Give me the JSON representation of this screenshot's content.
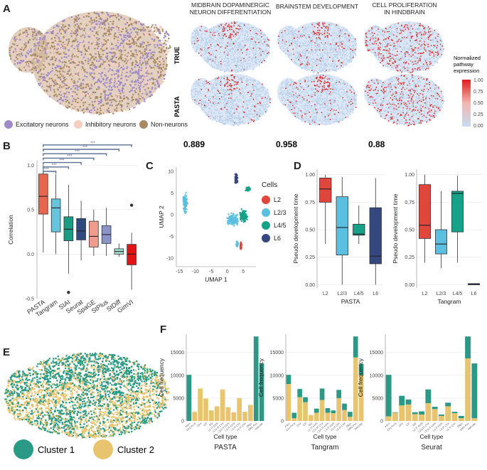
{
  "panels": [
    "A",
    "B",
    "C",
    "D",
    "E",
    "F"
  ],
  "colors": {
    "excitatory": "#9f8bc7",
    "inhibitory": "#f4cfc0",
    "nonneuron": "#a88a62",
    "pasta_box": "#e8664e",
    "tangram_box": "#68c3dd",
    "cl1": "#2a9a86",
    "cl2": "#e7c46d",
    "L2": "#e0473a",
    "L23": "#5bc0e0",
    "L45": "#16a288",
    "L6": "#34477e"
  },
  "panelA": {
    "legend": [
      "Excitatory neurons",
      "Inhibitory neurons",
      "Non-neurons"
    ],
    "col_titles": [
      [
        "MIDBRAIN DOPAMINERGIC",
        "NEURON DIFFERENTIATION"
      ],
      [
        "BRAINSTEM DEVELOPMENT"
      ],
      [
        "CELL PROLIFERATION",
        "IN HINDBRAIN"
      ]
    ],
    "row_labels": [
      "TRUE",
      "PASTA"
    ],
    "scores": [
      "0.889",
      "0.958",
      "0.88"
    ],
    "colorbar": {
      "title": [
        "Normalized",
        "pathway",
        "expression"
      ],
      "ticks": [
        "1.00",
        "0.75",
        "0.50",
        "0.25",
        "0.00"
      ]
    }
  },
  "panelB_sig": "***",
  "chart_data": [
    {
      "panel": "B",
      "type": "box",
      "ylabel": "Correlation",
      "ylim": [
        -0.5,
        1.05
      ],
      "yticks": [
        "1.0",
        "0.5",
        "0.0",
        "-0.5"
      ],
      "ytick_values": [
        1.0,
        0.5,
        0.0,
        -0.5
      ],
      "categories": [
        "PASTA",
        "Tangram",
        "SIAI",
        "Seurat",
        "SpaGE",
        "StPlus",
        "StDiff",
        "GimVI"
      ],
      "boxes": [
        {
          "q1": 0.45,
          "median": 0.65,
          "q3": 0.9,
          "low": 0.02,
          "high": 1.0,
          "outliers": []
        },
        {
          "q1": 0.25,
          "median": 0.52,
          "q3": 0.62,
          "low": 0.0,
          "high": 0.9,
          "outliers": []
        },
        {
          "q1": 0.15,
          "median": 0.28,
          "q3": 0.42,
          "low": -0.22,
          "high": 0.78,
          "outliers": [
            -0.43
          ]
        },
        {
          "q1": 0.16,
          "median": 0.26,
          "q3": 0.4,
          "low": -0.07,
          "high": 0.6,
          "outliers": []
        },
        {
          "q1": 0.08,
          "median": 0.2,
          "q3": 0.37,
          "low": -0.02,
          "high": 0.5,
          "outliers": []
        },
        {
          "q1": 0.12,
          "median": 0.22,
          "q3": 0.32,
          "low": -0.02,
          "high": 0.52,
          "outliers": []
        },
        {
          "q1": 0.0,
          "median": 0.03,
          "q3": 0.06,
          "low": -0.03,
          "high": 0.12,
          "outliers": []
        },
        {
          "q1": -0.12,
          "median": 0.0,
          "q3": 0.11,
          "low": -0.4,
          "high": 0.24,
          "outliers": [
            0.55
          ]
        }
      ]
    },
    {
      "panel": "C",
      "type": "scatter",
      "xlabel": "UMAP 1",
      "ylabel": "UMAP 2",
      "xlim": [
        -16,
        9
      ],
      "ylim": [
        -12,
        11
      ],
      "xticks": [
        -15,
        -10,
        -5,
        0,
        5
      ],
      "yticks": [
        10,
        5,
        0,
        -5,
        -10
      ],
      "legend_title": "Cells",
      "series": [
        {
          "name": "L2",
          "clusters": [
            [
              4.3,
              -7.1,
              0.3,
              0.9
            ]
          ]
        },
        {
          "name": "L2/3",
          "clusters": [
            [
              -13.2,
              2.6,
              0.8,
              2.6
            ],
            [
              1.7,
              -1.1,
              2.0,
              1.8
            ],
            [
              3.1,
              -6.8,
              0.4,
              0.8
            ]
          ]
        },
        {
          "name": "L4/5",
          "clusters": [
            [
              5.1,
              -0.3,
              1.4,
              1.7
            ],
            [
              6.5,
              5.9,
              0.9,
              0.6
            ]
          ]
        },
        {
          "name": "L6",
          "clusters": [
            [
              2.8,
              8.3,
              0.5,
              1.3
            ]
          ]
        }
      ]
    },
    {
      "panel": "D",
      "type": "box",
      "ylabel": "Pseudo development time",
      "ylim": [
        -0.03,
        1.05
      ],
      "yticks": [
        "1.00",
        "0.75",
        "0.50",
        "0.25",
        "0.00"
      ],
      "ytick_values": [
        1.0,
        0.75,
        0.5,
        0.25,
        0.0
      ],
      "subplots": [
        {
          "xlabel": "PASTA",
          "categories": [
            "L2",
            "L2/3",
            "L4/5",
            "L6"
          ],
          "boxes": [
            {
              "q1": 0.75,
              "median": 0.87,
              "q3": 0.97,
              "low": 0.37,
              "high": 1.0
            },
            {
              "q1": 0.27,
              "median": 0.52,
              "q3": 0.8,
              "low": 0.0,
              "high": 0.98
            },
            {
              "q1": 0.45,
              "median": 0.46,
              "q3": 0.55,
              "low": 0.37,
              "high": 0.72
            },
            {
              "q1": 0.19,
              "median": 0.26,
              "q3": 0.7,
              "low": 0.0,
              "high": 0.97
            }
          ]
        },
        {
          "xlabel": "Tangram",
          "categories": [
            "L2",
            "L2/3",
            "L4/5",
            "L6"
          ],
          "boxes": [
            {
              "q1": 0.42,
              "median": 0.54,
              "q3": 0.91,
              "low": 0.2,
              "high": 1.0
            },
            {
              "q1": 0.28,
              "median": 0.37,
              "q3": 0.5,
              "low": 0.15,
              "high": 0.85
            },
            {
              "q1": 0.48,
              "median": 0.83,
              "q3": 0.85,
              "low": 0.2,
              "high": 0.99
            },
            {
              "q1": 0.0,
              "median": 0.0,
              "q3": 0.01,
              "low": 0.0,
              "high": 0.01
            }
          ]
        }
      ]
    },
    {
      "panel": "F",
      "type": "stacked_bar",
      "ylabel": "Cell frequency",
      "xlabel": "Cell type",
      "categories": [
        "Astro",
        "CA1-ProS",
        "CA3",
        "CR",
        "DG",
        "L2 IT ENTl",
        "L2/3 IT CTX",
        "L2/3 IT ENTl",
        "L3 IT ENTl",
        "L5 IT CTX",
        "L6 IT CTX",
        "Oligo",
        "SMC-Peri",
        "Vascular"
      ],
      "series_names": [
        "Cluster 1",
        "Cluster 2"
      ],
      "subplots": [
        {
          "xlabel": "PASTA",
          "ylim": [
            0,
            19000
          ],
          "yticks": [
            0,
            5000,
            10000,
            15000
          ],
          "series": [
            {
              "name": "Cluster 1",
              "values": [
                10100,
                0,
                0,
                0,
                0,
                0,
                0,
                0,
                0,
                0,
                0,
                0,
                18500,
                12600
              ]
            },
            {
              "name": "Cluster 2",
              "values": [
                0,
                2000,
                7100,
                4900,
                2300,
                3200,
                6900,
                3000,
                1900,
                5000,
                2000,
                3500,
                0,
                0
              ]
            }
          ]
        },
        {
          "xlabel": "Tangram",
          "ylim": [
            0,
            19000
          ],
          "yticks": [
            0,
            5000,
            10000,
            15000
          ],
          "series": [
            {
              "name": "Cluster 1",
              "values": [
                2000,
                1200,
                1800,
                1100,
                0,
                900,
                2500,
                1000,
                600,
                1800,
                1400,
                1100,
                4600,
                2400
              ]
            },
            {
              "name": "Cluster 2",
              "values": [
                8100,
                600,
                5200,
                4100,
                1300,
                1800,
                4600,
                1800,
                1700,
                5000,
                2400,
                900,
                13900,
                10100
              ]
            }
          ]
        },
        {
          "xlabel": "Seurat",
          "ylim": [
            0,
            19000
          ],
          "yticks": [
            0,
            5000,
            10000,
            15000
          ],
          "series": [
            {
              "name": "Cluster 1",
              "values": [
                9100,
                100,
                2100,
                1100,
                400,
                700,
                3000,
                500,
                300,
                800,
                300,
                500,
                4800,
                12000
              ]
            },
            {
              "name": "Cluster 2",
              "values": [
                1000,
                1800,
                3400,
                3600,
                1500,
                1400,
                3900,
                2600,
                1100,
                3200,
                1700,
                600,
                13700,
                600
              ]
            }
          ]
        }
      ]
    }
  ],
  "panelE_legend": [
    "Cluster 1",
    "Cluster 2"
  ]
}
